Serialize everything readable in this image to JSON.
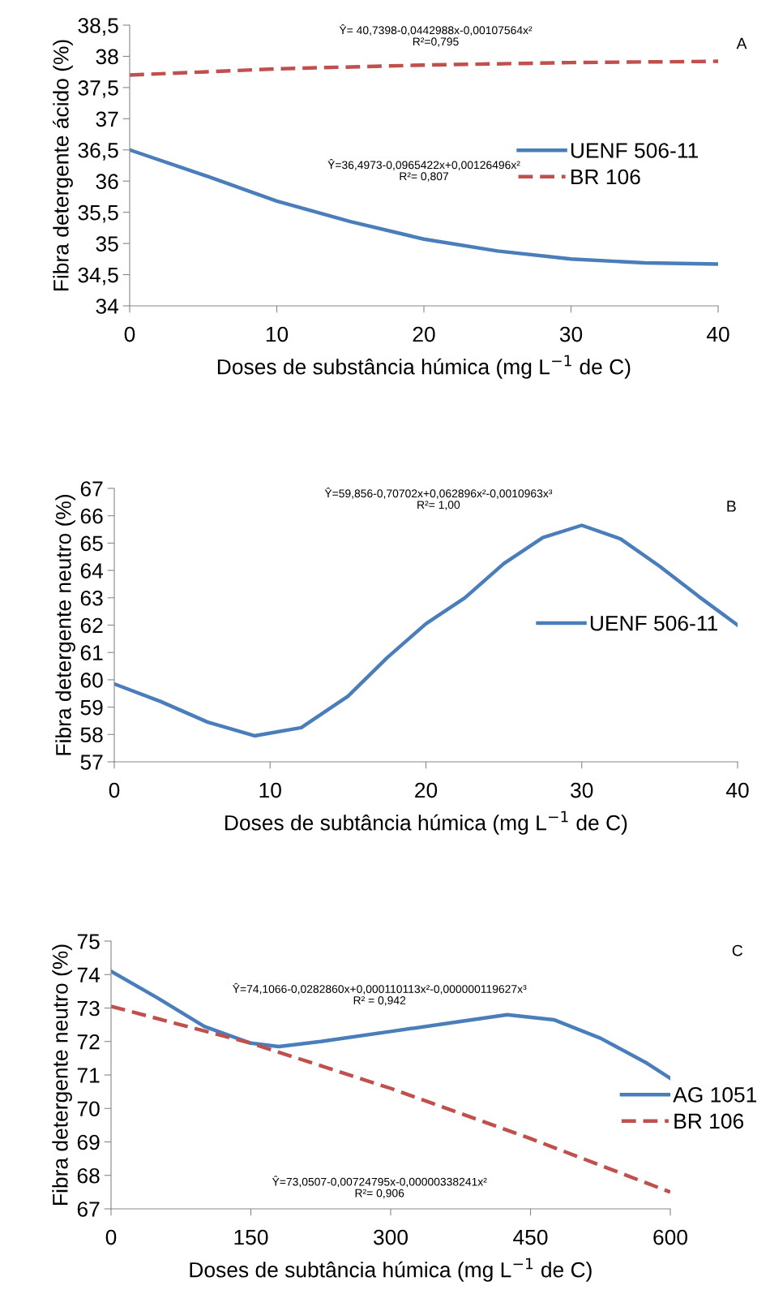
{
  "chart_data": [
    {
      "type": "line",
      "xlabel": "Doses de substância húmica (mg L$^{−1}$ de C)",
      "ylabel": "Fibra detergente ácido (%)",
      "xlim": [
        0,
        40
      ],
      "xticks": [
        0,
        10,
        20,
        30,
        40
      ],
      "ylim": [
        34,
        38.5
      ],
      "yticks": [
        34,
        {
          "value": 34.5,
          "label": "34,5"
        },
        35,
        {
          "value": 35.5,
          "label": "35,5"
        },
        36,
        {
          "value": 36.5,
          "label": "36,5"
        },
        37,
        {
          "value": 37.5,
          "label": "37,5"
        },
        38,
        {
          "value": 38.5,
          "label": "38,5"
        }
      ],
      "legend": "right",
      "grid": false,
      "marker": "none",
      "annotations": [
        "Ŷ= 40,7398-0,0442988x-0,00107564x²\nR²=0,795",
        "Ŷ=36,4973-0,0965422x+0,00126496x²\nR²= 0,807",
        "A"
      ],
      "series": [
        {
          "name": "UENF 506-11",
          "color": "#4a7ebb",
          "line_style": "solid",
          "x": [
            0,
            5,
            10,
            15,
            20,
            25,
            30,
            35,
            40
          ],
          "values": [
            36.5,
            36.1,
            35.68,
            35.35,
            35.07,
            34.88,
            34.75,
            34.69,
            34.67
          ]
        },
        {
          "name": "BR 106",
          "color": "#c0504d",
          "line_style": "dashed",
          "x": [
            0,
            10,
            20,
            30,
            40
          ],
          "values": [
            37.7,
            37.8,
            37.86,
            37.9,
            37.92
          ]
        }
      ]
    },
    {
      "type": "line",
      "xlabel": "Doses de subtância húmica (mg L$^{−1}$ de C)",
      "ylabel": "Fibra detergente neutro (%)",
      "xlim": [
        0,
        40
      ],
      "xticks": [
        0,
        10,
        20,
        30,
        40
      ],
      "ylim": [
        57,
        67
      ],
      "yticks": [
        57,
        58,
        59,
        60,
        61,
        62,
        63,
        64,
        65,
        66,
        67
      ],
      "legend": "center right",
      "grid": false,
      "marker": "none",
      "annotations": [
        "Ŷ=59,856-0,70702x+0,062896x²-0,0010963x³\nR²= 1,00",
        "B"
      ],
      "series": [
        {
          "name": "UENF 506-11",
          "color": "#4a7ebb",
          "line_style": "solid",
          "x": [
            0,
            3,
            6,
            9,
            12,
            15,
            17.5,
            20,
            22.5,
            25,
            27.5,
            30,
            32.5,
            35,
            37.5,
            40
          ],
          "values": [
            59.85,
            59.2,
            58.45,
            57.95,
            58.25,
            59.4,
            60.8,
            62.05,
            63.0,
            64.25,
            65.2,
            65.65,
            65.15,
            64.15,
            63.05,
            62.0
          ]
        }
      ]
    },
    {
      "type": "line",
      "xlabel": "Doses de subtância húmica (mg L$^{−1}$ de C)",
      "ylabel": "Fibra detergente neutro (%)",
      "xlim": [
        0,
        600
      ],
      "xticks": [
        0,
        150,
        300,
        450,
        600
      ],
      "ylim": [
        67,
        75
      ],
      "yticks": [
        67,
        68,
        69,
        70,
        71,
        72,
        73,
        74,
        75
      ],
      "legend": "center right",
      "grid": false,
      "marker": "none",
      "annotations": [
        "Ŷ=74,1066-0,0282860x+0,000110113x²-0,000000119627x³\nR² = 0,942",
        "Ŷ=73,0507-0,00724795x-0,00000338241x²\nR²= 0,906",
        "C"
      ],
      "series": [
        {
          "name": "AG 1051",
          "color": "#4a7ebb",
          "line_style": "solid",
          "x": [
            0,
            50,
            100,
            150,
            180,
            225,
            300,
            375,
            425,
            475,
            525,
            575,
            600
          ],
          "values": [
            74.1,
            73.3,
            72.45,
            71.95,
            71.85,
            72.0,
            72.3,
            72.6,
            72.8,
            72.65,
            72.1,
            71.35,
            70.9
          ]
        },
        {
          "name": "BR 106",
          "color": "#c0504d",
          "line_style": "dashed",
          "x": [
            0,
            150,
            300,
            450,
            600
          ],
          "values": [
            73.05,
            71.95,
            70.6,
            69.1,
            67.5
          ]
        }
      ]
    }
  ]
}
